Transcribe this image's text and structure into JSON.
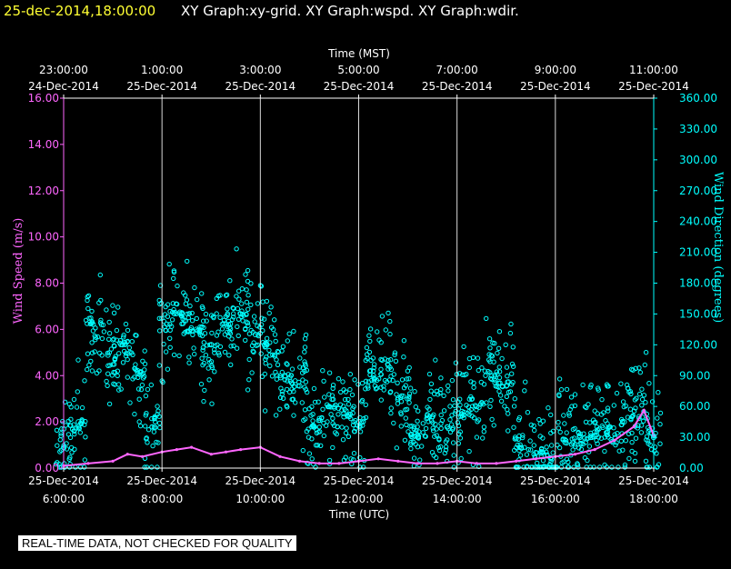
{
  "header": {
    "timestamp": "25-dec-2014,18:00:00",
    "graphs": "XY Graph:xy-grid.  XY Graph:wspd.  XY Graph:wdir."
  },
  "footer": {
    "quality_note": "REAL-TIME DATA, NOT CHECKED FOR QUALITY"
  },
  "colors": {
    "timestamp": "#ffff33",
    "speed": "#ff66ff",
    "direction": "#00ffff",
    "grid": "#ffffff",
    "background": "#000000"
  },
  "chart_data": {
    "type": "scatter",
    "title": "",
    "x_top_label": "Time (MST)",
    "x_bottom_label": "Time (UTC)",
    "ylabel_left": "Wind Speed (m/s)",
    "ylabel_right": "Wind Direction (degrees)",
    "ylim_left": [
      0,
      16
    ],
    "ylim_right": [
      0,
      360
    ],
    "x_hours_utc": [
      6,
      18
    ],
    "grid": true,
    "left_ticks": [
      "0.00",
      "2.00",
      "4.00",
      "6.00",
      "8.00",
      "10.00",
      "12.00",
      "14.00",
      "16.00"
    ],
    "right_ticks": [
      "0.00",
      "30.00",
      "60.00",
      "90.00",
      "120.00",
      "150.00",
      "180.00",
      "210.00",
      "240.00",
      "270.00",
      "300.00",
      "330.00",
      "360.00"
    ],
    "top_ticks": [
      {
        "time": "23:00:00",
        "date": "24-Dec-2014"
      },
      {
        "time": "1:00:00",
        "date": "25-Dec-2014"
      },
      {
        "time": "3:00:00",
        "date": "25-Dec-2014"
      },
      {
        "time": "5:00:00",
        "date": "25-Dec-2014"
      },
      {
        "time": "7:00:00",
        "date": "25-Dec-2014"
      },
      {
        "time": "9:00:00",
        "date": "25-Dec-2014"
      },
      {
        "time": "11:00:00",
        "date": "25-Dec-2014"
      }
    ],
    "bottom_ticks": [
      {
        "date": "25-Dec-2014",
        "time": "6:00:00"
      },
      {
        "date": "25-Dec-2014",
        "time": "8:00:00"
      },
      {
        "date": "25-Dec-2014",
        "time": "10:00:00"
      },
      {
        "date": "25-Dec-2014",
        "time": "12:00:00"
      },
      {
        "date": "25-Dec-2014",
        "time": "14:00:00"
      },
      {
        "date": "25-Dec-2014",
        "time": "16:00:00"
      },
      {
        "date": "25-Dec-2014",
        "time": "18:00:00"
      }
    ],
    "series": [
      {
        "name": "wspd",
        "axis": "left",
        "x_hours": [
          6.0,
          6.5,
          7.0,
          7.3,
          7.6,
          8.0,
          8.3,
          8.6,
          9.0,
          9.3,
          9.6,
          10.0,
          10.4,
          10.8,
          11.2,
          11.6,
          12.0,
          12.4,
          12.8,
          13.2,
          13.6,
          14.0,
          14.4,
          14.8,
          15.2,
          15.6,
          16.0,
          16.4,
          16.8,
          17.2,
          17.6,
          17.8,
          18.0
        ],
        "values": [
          0.1,
          0.2,
          0.3,
          0.6,
          0.5,
          0.7,
          0.8,
          0.9,
          0.6,
          0.7,
          0.8,
          0.9,
          0.5,
          0.3,
          0.2,
          0.2,
          0.3,
          0.4,
          0.3,
          0.2,
          0.2,
          0.3,
          0.2,
          0.2,
          0.3,
          0.4,
          0.5,
          0.6,
          0.8,
          1.2,
          1.8,
          2.5,
          1.4
        ]
      },
      {
        "name": "wdir",
        "axis": "right",
        "x_hours": [
          6.0,
          6.3,
          6.6,
          6.9,
          7.2,
          7.5,
          7.8,
          8.1,
          8.4,
          8.7,
          9.0,
          9.3,
          9.6,
          9.9,
          10.2,
          10.5,
          10.8,
          11.1,
          11.4,
          11.7,
          12.0,
          12.3,
          12.6,
          12.9,
          13.2,
          13.5,
          13.8,
          14.1,
          14.4,
          14.7,
          15.0,
          15.3,
          15.6,
          15.9,
          16.2,
          16.5,
          16.8,
          17.1,
          17.4,
          17.7,
          18.0
        ],
        "values": [
          20,
          45,
          140,
          110,
          120,
          95,
          40,
          140,
          150,
          135,
          120,
          140,
          150,
          130,
          110,
          90,
          80,
          40,
          60,
          50,
          45,
          90,
          100,
          70,
          30,
          50,
          40,
          55,
          60,
          90,
          80,
          20,
          15,
          10,
          25,
          30,
          35,
          40,
          45,
          50,
          30
        ]
      }
    ]
  }
}
